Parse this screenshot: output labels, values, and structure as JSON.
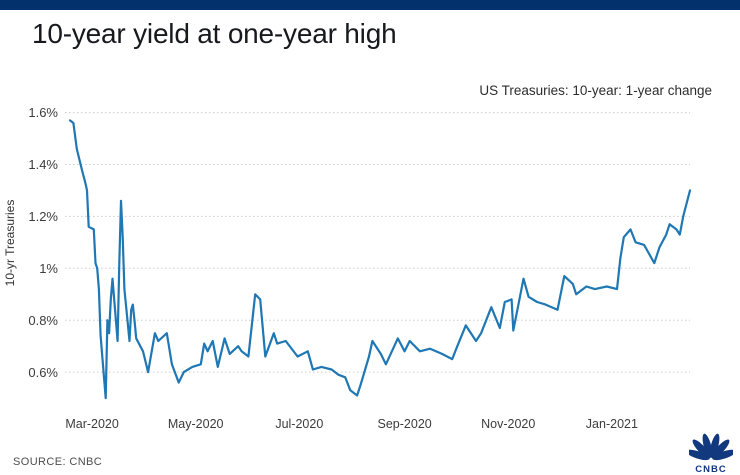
{
  "header": {
    "title": "10-year yield at one-year high"
  },
  "chart": {
    "subtitle": "US Treasuries: 10-year: 1-year change",
    "y_axis_title": "10-yr Treasuries"
  },
  "footer": {
    "source_label": "SOURCE: CNBC",
    "logo_text": "CNBC"
  },
  "colors": {
    "top_bar": "#02316b",
    "line": "#1f77b4",
    "grid": "#cccccc",
    "title_text": "#17191d",
    "tick_text": "#3c3c3c",
    "logo": "#12387e"
  },
  "chart_data": {
    "type": "line",
    "title": "10-year yield at one-year high",
    "subtitle": "US Treasuries: 10-year: 1-year change",
    "xlabel": "",
    "ylabel": "10-yr Treasuries",
    "grid": true,
    "legend_position": "none",
    "x_range": [
      "2020-02-17",
      "2021-02-16"
    ],
    "ylim": [
      0.45,
      1.65
    ],
    "y_ticks": [
      {
        "value": 1.6,
        "label": "1.6%"
      },
      {
        "value": 1.4,
        "label": "1.4%"
      },
      {
        "value": 1.2,
        "label": "1.2%"
      },
      {
        "value": 1.0,
        "label": "1%"
      },
      {
        "value": 0.8,
        "label": "0.8%"
      },
      {
        "value": 0.6,
        "label": "0.6%"
      }
    ],
    "x_ticks": [
      {
        "date": "2020-03-01",
        "label": "Mar-2020"
      },
      {
        "date": "2020-05-01",
        "label": "May-2020"
      },
      {
        "date": "2020-07-01",
        "label": "Jul-2020"
      },
      {
        "date": "2020-09-01",
        "label": "Sep-2020"
      },
      {
        "date": "2020-11-01",
        "label": "Nov-2020"
      },
      {
        "date": "2021-01-01",
        "label": "Jan-2021"
      }
    ],
    "series": [
      {
        "name": "US 10-year Treasury yield (%)",
        "points": [
          [
            "2020-02-17",
            1.57
          ],
          [
            "2020-02-19",
            1.56
          ],
          [
            "2020-02-21",
            1.46
          ],
          [
            "2020-02-24",
            1.38
          ],
          [
            "2020-02-26",
            1.33
          ],
          [
            "2020-02-27",
            1.3
          ],
          [
            "2020-02-28",
            1.16
          ],
          [
            "2020-03-02",
            1.15
          ],
          [
            "2020-03-03",
            1.02
          ],
          [
            "2020-03-04",
            1.0
          ],
          [
            "2020-03-05",
            0.92
          ],
          [
            "2020-03-06",
            0.74
          ],
          [
            "2020-03-09",
            0.5
          ],
          [
            "2020-03-10",
            0.8
          ],
          [
            "2020-03-11",
            0.75
          ],
          [
            "2020-03-12",
            0.88
          ],
          [
            "2020-03-13",
            0.96
          ],
          [
            "2020-03-16",
            0.72
          ],
          [
            "2020-03-17",
            1.02
          ],
          [
            "2020-03-18",
            1.26
          ],
          [
            "2020-03-19",
            1.12
          ],
          [
            "2020-03-20",
            0.92
          ],
          [
            "2020-03-23",
            0.72
          ],
          [
            "2020-03-24",
            0.84
          ],
          [
            "2020-03-25",
            0.86
          ],
          [
            "2020-03-26",
            0.8
          ],
          [
            "2020-03-27",
            0.73
          ],
          [
            "2020-03-31",
            0.68
          ],
          [
            "2020-04-03",
            0.6
          ],
          [
            "2020-04-07",
            0.75
          ],
          [
            "2020-04-09",
            0.72
          ],
          [
            "2020-04-14",
            0.75
          ],
          [
            "2020-04-17",
            0.63
          ],
          [
            "2020-04-21",
            0.56
          ],
          [
            "2020-04-24",
            0.6
          ],
          [
            "2020-04-29",
            0.62
          ],
          [
            "2020-05-04",
            0.63
          ],
          [
            "2020-05-06",
            0.71
          ],
          [
            "2020-05-08",
            0.68
          ],
          [
            "2020-05-11",
            0.72
          ],
          [
            "2020-05-14",
            0.62
          ],
          [
            "2020-05-18",
            0.73
          ],
          [
            "2020-05-21",
            0.67
          ],
          [
            "2020-05-26",
            0.7
          ],
          [
            "2020-05-28",
            0.68
          ],
          [
            "2020-06-01",
            0.66
          ],
          [
            "2020-06-05",
            0.9
          ],
          [
            "2020-06-08",
            0.88
          ],
          [
            "2020-06-11",
            0.66
          ],
          [
            "2020-06-16",
            0.75
          ],
          [
            "2020-06-18",
            0.71
          ],
          [
            "2020-06-23",
            0.72
          ],
          [
            "2020-06-30",
            0.66
          ],
          [
            "2020-07-06",
            0.68
          ],
          [
            "2020-07-09",
            0.61
          ],
          [
            "2020-07-14",
            0.62
          ],
          [
            "2020-07-20",
            0.61
          ],
          [
            "2020-07-24",
            0.59
          ],
          [
            "2020-07-28",
            0.58
          ],
          [
            "2020-07-31",
            0.53
          ],
          [
            "2020-08-04",
            0.51
          ],
          [
            "2020-08-06",
            0.55
          ],
          [
            "2020-08-11",
            0.66
          ],
          [
            "2020-08-13",
            0.72
          ],
          [
            "2020-08-18",
            0.67
          ],
          [
            "2020-08-21",
            0.63
          ],
          [
            "2020-08-28",
            0.73
          ],
          [
            "2020-09-01",
            0.68
          ],
          [
            "2020-09-04",
            0.72
          ],
          [
            "2020-09-10",
            0.68
          ],
          [
            "2020-09-16",
            0.69
          ],
          [
            "2020-09-23",
            0.67
          ],
          [
            "2020-09-29",
            0.65
          ],
          [
            "2020-10-02",
            0.7
          ],
          [
            "2020-10-07",
            0.78
          ],
          [
            "2020-10-13",
            0.72
          ],
          [
            "2020-10-16",
            0.75
          ],
          [
            "2020-10-22",
            0.85
          ],
          [
            "2020-10-27",
            0.77
          ],
          [
            "2020-10-30",
            0.87
          ],
          [
            "2020-11-03",
            0.88
          ],
          [
            "2020-11-04",
            0.76
          ],
          [
            "2020-11-10",
            0.96
          ],
          [
            "2020-11-13",
            0.89
          ],
          [
            "2020-11-18",
            0.87
          ],
          [
            "2020-11-23",
            0.86
          ],
          [
            "2020-11-30",
            0.84
          ],
          [
            "2020-12-04",
            0.97
          ],
          [
            "2020-12-09",
            0.94
          ],
          [
            "2020-12-11",
            0.9
          ],
          [
            "2020-12-17",
            0.93
          ],
          [
            "2020-12-22",
            0.92
          ],
          [
            "2020-12-29",
            0.93
          ],
          [
            "2021-01-04",
            0.92
          ],
          [
            "2021-01-06",
            1.04
          ],
          [
            "2021-01-08",
            1.12
          ],
          [
            "2021-01-12",
            1.15
          ],
          [
            "2021-01-15",
            1.1
          ],
          [
            "2021-01-20",
            1.09
          ],
          [
            "2021-01-26",
            1.02
          ],
          [
            "2021-01-29",
            1.08
          ],
          [
            "2021-02-02",
            1.13
          ],
          [
            "2021-02-04",
            1.17
          ],
          [
            "2021-02-08",
            1.15
          ],
          [
            "2021-02-10",
            1.13
          ],
          [
            "2021-02-12",
            1.2
          ],
          [
            "2021-02-16",
            1.3
          ]
        ]
      }
    ]
  }
}
